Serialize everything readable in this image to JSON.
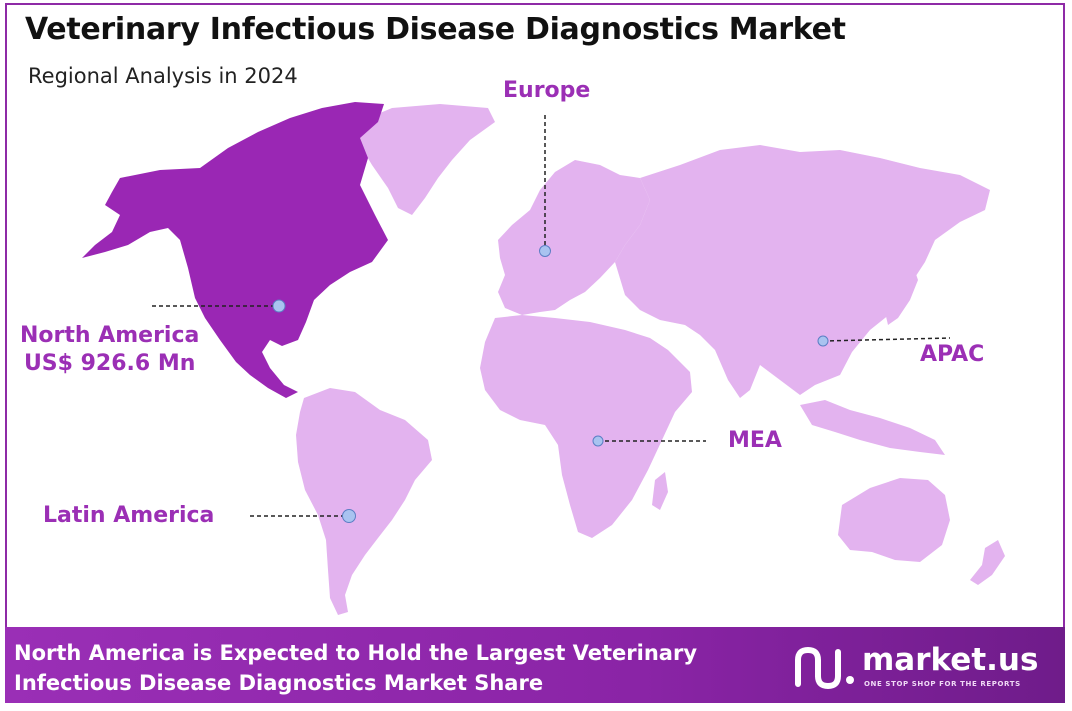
{
  "header": {
    "title": "Veterinary Infectious Disease Diagnostics Market",
    "subtitle": "Regional Analysis in 2024"
  },
  "regions": {
    "north_america": {
      "name": "North America",
      "value": "US$ 926.6 Mn",
      "highlighted": true
    },
    "europe": {
      "name": "Europe"
    },
    "apac": {
      "name": "APAC"
    },
    "mea": {
      "name": "MEA"
    },
    "latin_america": {
      "name": "Latin America"
    }
  },
  "colors": {
    "highlight_region": "#9a27b4",
    "other_regions": "#e3b3ef",
    "label_text": "#9b2fb5",
    "marker": "#a9c3f0"
  },
  "footer": {
    "text_line1": "North America is Expected to Hold the Largest Veterinary",
    "text_line2": "Infectious Disease Diagnostics Market Share",
    "brand_name": "market.us",
    "brand_tagline": "ONE STOP SHOP FOR THE REPORTS",
    "brand_icon": "market-us-logo-icon"
  }
}
